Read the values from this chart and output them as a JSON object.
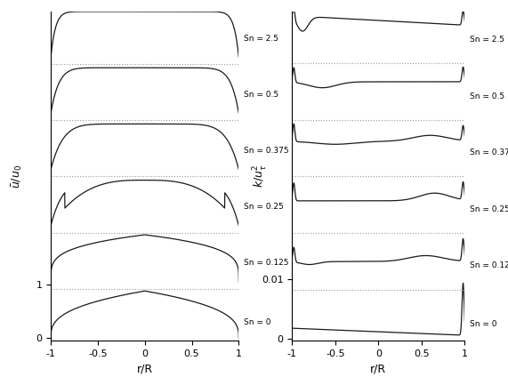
{
  "swirl_numbers": [
    0,
    0.125,
    0.25,
    0.375,
    0.5,
    2.5
  ],
  "swirl_labels": [
    "Sn = 0",
    "Sn = 0.125",
    "Sn = 0.25",
    "Sn = 0.375",
    "Sn = 0.5",
    "Sn = 2.5"
  ],
  "xlabel": "r/R",
  "left_ylabel": "u/u_0",
  "right_ylabel": "k/u_t^2",
  "left_ytick_vals": [
    0,
    1
  ],
  "left_ytick_labels": [
    "0",
    "1"
  ],
  "right_ytick_vals": [
    0,
    1.0
  ],
  "right_ytick_labels": [
    "0",
    "0.01"
  ],
  "left_offsets": [
    0,
    1.05,
    2.1,
    3.15,
    4.2,
    5.25
  ],
  "left_sep": [
    0.92,
    1.97,
    3.02,
    4.07,
    5.12
  ],
  "right_offsets": [
    0,
    0.95,
    1.9,
    2.85,
    3.8,
    4.75
  ],
  "right_sep": [
    0.83,
    1.78,
    2.73,
    3.68,
    4.63
  ],
  "line_color": "#1a1a1a",
  "sep_color": "#999999"
}
